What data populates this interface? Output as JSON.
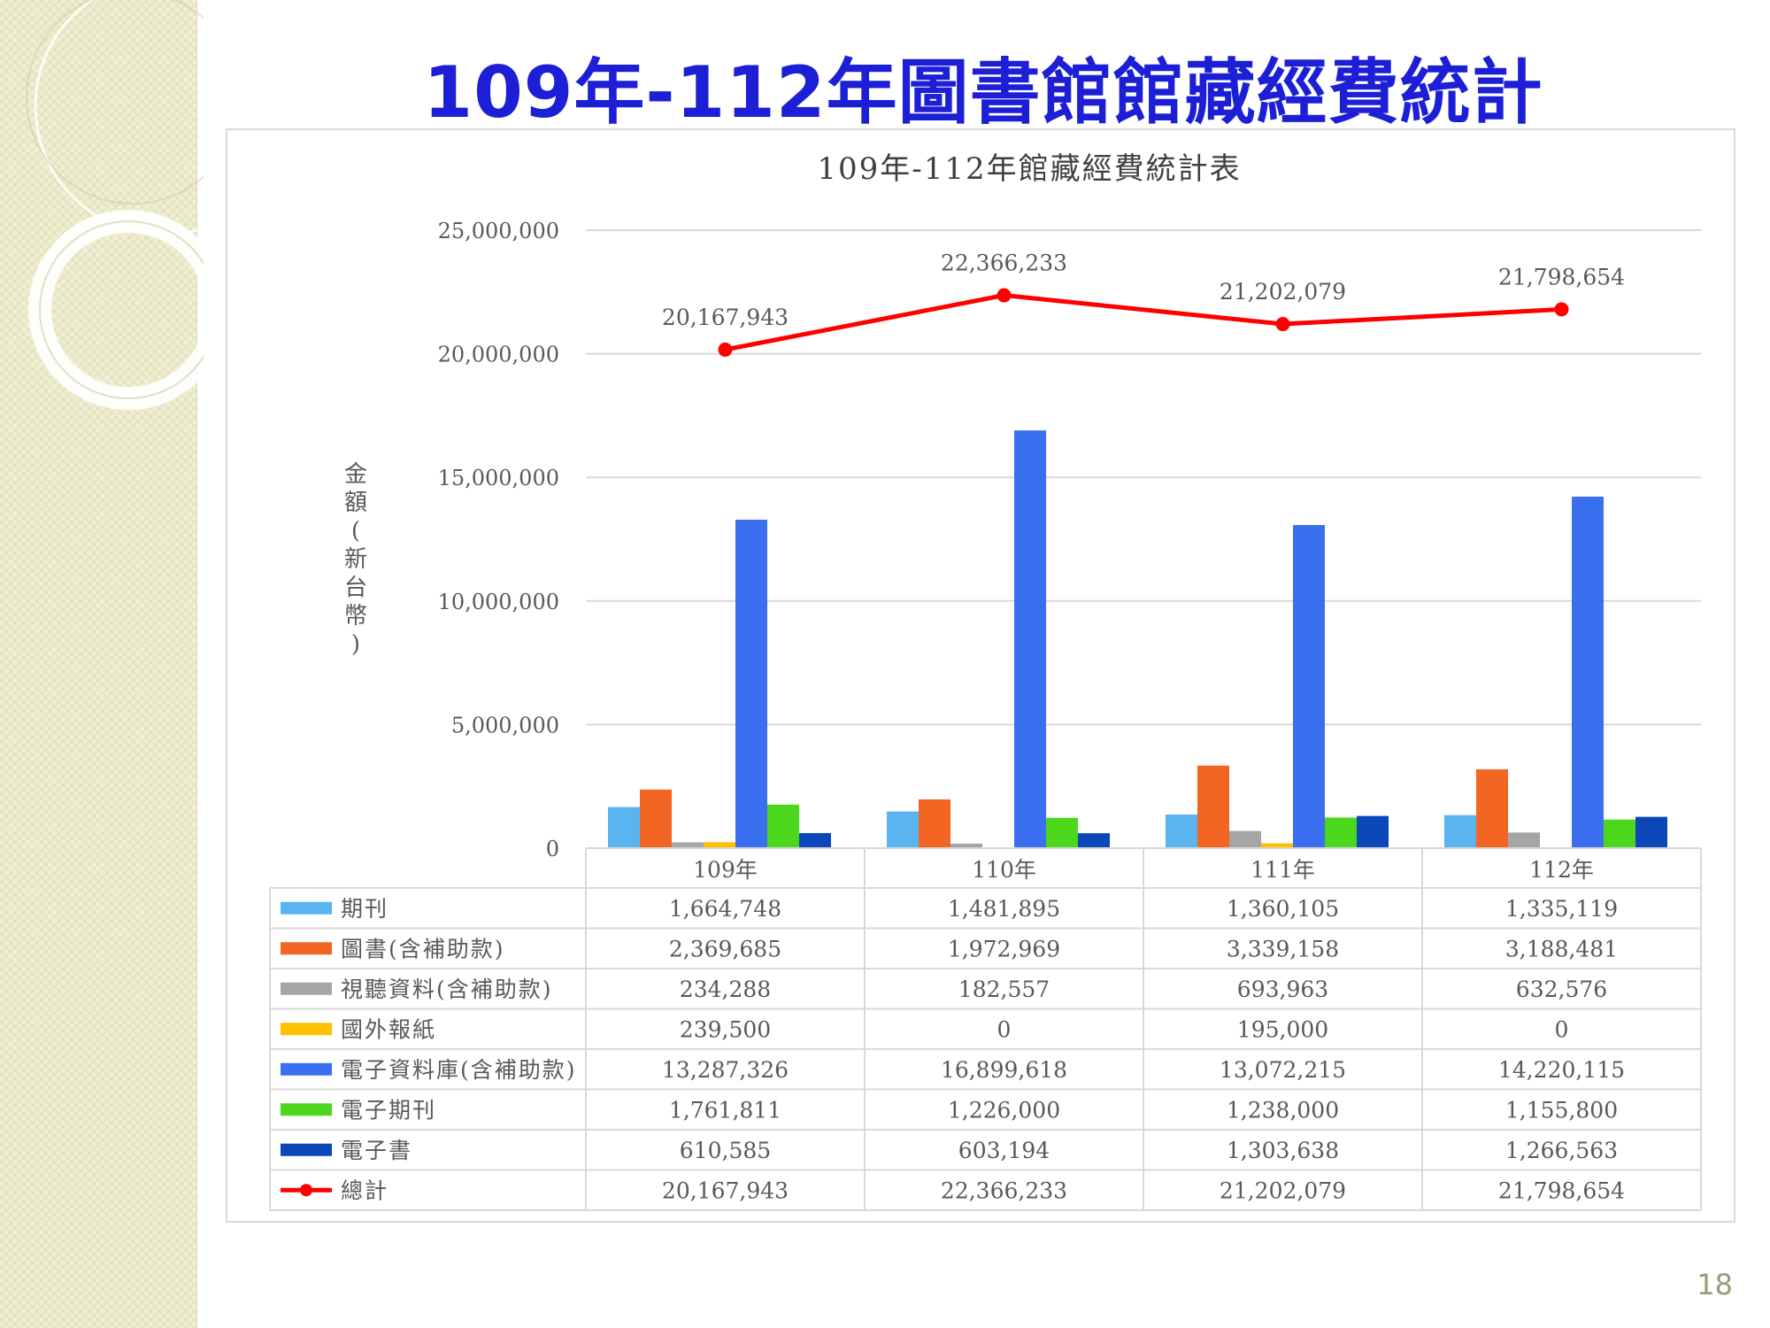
{
  "slide": {
    "title": "109年-112年圖書館館藏經費統計",
    "page_number": "18"
  },
  "chart_data": {
    "type": "bar",
    "title": "109年-112年館藏經費統計表",
    "ylabel": "金額(新台幣)",
    "xlabel": "",
    "ylim": [
      0,
      25000000
    ],
    "yticks": [
      0,
      5000000,
      10000000,
      15000000,
      20000000,
      25000000
    ],
    "ytick_labels": [
      "0",
      "5,000,000",
      "10,000,000",
      "15,000,000",
      "20,000,000",
      "25,000,000"
    ],
    "categories": [
      "109年",
      "110年",
      "111年",
      "112年"
    ],
    "grid": true,
    "legend": "data-table-below",
    "series": [
      {
        "name": "期刊",
        "color": "#5ab4f0",
        "kind": "bar",
        "values": [
          1664748,
          1481895,
          1360105,
          1335119
        ],
        "labels": [
          "1,664,748",
          "1,481,895",
          "1,360,105",
          "1,335,119"
        ]
      },
      {
        "name": "圖書(含補助款)",
        "color": "#f26522",
        "kind": "bar",
        "values": [
          2369685,
          1972969,
          3339158,
          3188481
        ],
        "labels": [
          "2,369,685",
          "1,972,969",
          "3,339,158",
          "3,188,481"
        ]
      },
      {
        "name": "視聽資料(含補助款)",
        "color": "#a5a5a5",
        "kind": "bar",
        "values": [
          234288,
          182557,
          693963,
          632576
        ],
        "labels": [
          "234,288",
          "182,557",
          "693,963",
          "632,576"
        ]
      },
      {
        "name": "國外報紙",
        "color": "#ffc000",
        "kind": "bar",
        "values": [
          239500,
          0,
          195000,
          0
        ],
        "labels": [
          "239,500",
          "0",
          "195,000",
          "0"
        ]
      },
      {
        "name": "電子資料庫(含補助款)",
        "color": "#3a6ff0",
        "kind": "bar",
        "values": [
          13287326,
          16899618,
          13072215,
          14220115
        ],
        "labels": [
          "13,287,326",
          "16,899,618",
          "13,072,215",
          "14,220,115"
        ]
      },
      {
        "name": "電子期刊",
        "color": "#4cd71c",
        "kind": "bar",
        "values": [
          1761811,
          1226000,
          1238000,
          1155800
        ],
        "labels": [
          "1,761,811",
          "1,226,000",
          "1,238,000",
          "1,155,800"
        ]
      },
      {
        "name": "電子書",
        "color": "#0b47b8",
        "kind": "bar",
        "values": [
          610585,
          603194,
          1303638,
          1266563
        ],
        "labels": [
          "610,585",
          "603,194",
          "1,303,638",
          "1,266,563"
        ]
      },
      {
        "name": "總計",
        "color": "#ff0000",
        "kind": "line",
        "values": [
          20167943,
          22366233,
          21202079,
          21798654
        ],
        "labels": [
          "20,167,943",
          "22,366,233",
          "21,202,079",
          "21,798,654"
        ]
      }
    ]
  }
}
